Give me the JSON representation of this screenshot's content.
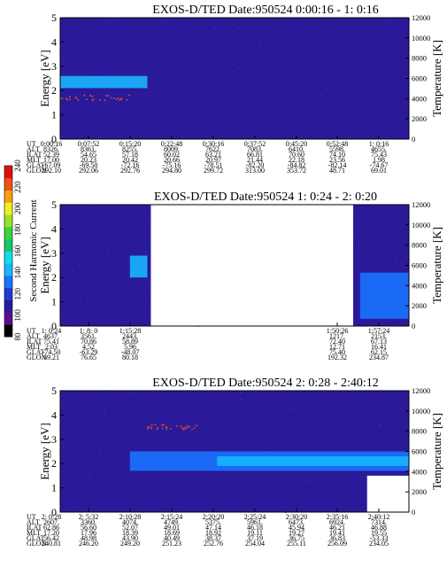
{
  "colorbar": {
    "label": "Second Harmonic Current",
    "ticks": [
      "80",
      "100",
      "120",
      "140",
      "160",
      "180",
      "200",
      "220",
      "240"
    ],
    "colors": [
      "#000000",
      "#5a0f8c",
      "#2a1a9a",
      "#1f3bd0",
      "#1a73ff",
      "#18b6ff",
      "#0fe0e8",
      "#13c96a",
      "#3cd43c",
      "#9be02a",
      "#f0f020",
      "#f5a014",
      "#f0501a",
      "#e01010"
    ]
  },
  "chart_data": [
    {
      "type": "heatmap",
      "title": "EXOS-D/TED   Date:950524   0:00:16 - 1: 0:16",
      "ylabel_left": "Energy [eV]",
      "ylabel_right": "Temperature [K]",
      "ylim_left": [
        0,
        5
      ],
      "ylim_right": [
        0,
        12000
      ],
      "yticks_left": [
        "0",
        "1",
        "2",
        "3",
        "4",
        "5"
      ],
      "yticks_right": [
        "0",
        "2000",
        "4000",
        "6000",
        "8000",
        "10000",
        "12000"
      ],
      "background_color": "#2a1a9a",
      "x_ticks": [
        "0:00:16",
        "0:07:52",
        "0:15:20",
        "0:22:48",
        "0:30:16",
        "0:37:52",
        "0:45:20",
        "0:52:48",
        "1: 0:16"
      ],
      "features": [
        {
          "desc": "band",
          "x_start": 0.0,
          "x_end": 0.25,
          "e_low": 2.1,
          "e_high": 2.6,
          "color": "#18b6ff"
        },
        {
          "desc": "scatter",
          "x_start": 0.0,
          "x_end": 0.2,
          "e": 1.7,
          "color": "#f05020"
        }
      ],
      "table_labels": [
        "UT",
        "ALT",
        "ILAT",
        "MLT",
        "GLAT",
        "GLON"
      ],
      "table_rows": [
        [
          "0:00:16",
          "0:07:52",
          "0:15:20",
          "0:22:48",
          "0:30:16",
          "0:37:52",
          "0:45:20",
          "0:52:48",
          "1: 0:16"
        ],
        [
          "8326.",
          "8361.",
          "8255.",
          "8009.",
          "7622.",
          "7083.",
          "6410.",
          "5598.",
          "4655."
        ],
        [
          "52.39",
          "54.65",
          "57.18",
          "60.02",
          "63.21",
          "66.81",
          "70.60",
          "74.10",
          "75.43"
        ],
        [
          "17.00",
          "20.23",
          "20.42",
          "20.66",
          "20.97",
          "21.44",
          "22.18",
          "23.56",
          "1.98"
        ],
        [
          "-67.09",
          "-69.50",
          "-72.16",
          "-75.16",
          "-78.51",
          "-82.20",
          "-84.82",
          "-82.14",
          "-74.67"
        ],
        [
          "292.10",
          "292.06",
          "292.76",
          "294.80",
          "299.72",
          "313.00",
          "353.72",
          "48.71",
          "69.01"
        ]
      ]
    },
    {
      "type": "heatmap",
      "title": "EXOS-D/TED   Date:950524   1: 0:24 - 2: 0:20",
      "ylabel_left": "Energy [eV]",
      "ylabel_right": "Temperature [K]",
      "ylim_left": [
        0,
        5
      ],
      "ylim_right": [
        0,
        12000
      ],
      "yticks_left": [
        "0",
        "1",
        "2",
        "3",
        "4",
        "5"
      ],
      "yticks_right": [
        "0",
        "2000",
        "4000",
        "6000",
        "8000",
        "10000",
        "12000"
      ],
      "background_color": "#2a1a9a",
      "x_ticks": [
        "1: 0:24",
        "1: 8: 0",
        "1:15:28",
        "",
        "",
        "",
        "",
        "1:50:26",
        "1:57:24"
      ],
      "gap": [
        0.26,
        0.84
      ],
      "features": [
        {
          "desc": "band",
          "x_start": 0.2,
          "x_end": 0.25,
          "e_low": 2.0,
          "e_high": 2.9,
          "color": "#18b6ff"
        },
        {
          "desc": "band",
          "x_start": 0.86,
          "x_end": 1.0,
          "e_low": 0.3,
          "e_high": 2.2,
          "color": "#1a73ff"
        }
      ],
      "table_labels": [
        "UT",
        "ALT",
        "ILAT",
        "MLT",
        "GLAT",
        "GLON"
      ],
      "table_rows": [
        [
          "1: 0:24",
          "1: 8: 0",
          "1:15:28",
          "",
          "",
          "",
          "",
          "1:50:26",
          "1:57:24"
        ],
        [
          "4637.",
          "3561.",
          "2443.",
          "",
          "",
          "",
          "",
          "1217.",
          "2153."
        ],
        [
          "75.41",
          "70.86",
          "58.89",
          "",
          "",
          "",
          "",
          "72.40",
          "67.13"
        ],
        [
          "2.03",
          "4.52",
          "5.96",
          "",
          "",
          "",
          "",
          "12.71",
          "16.41"
        ],
        [
          "-74.50",
          "-63.29",
          "-48.07",
          "",
          "",
          "",
          "",
          "75.40",
          "62.15"
        ],
        [
          "69.21",
          "76.65",
          "80.18",
          "",
          "",
          "",
          "",
          "192.32",
          "234.87"
        ]
      ]
    },
    {
      "type": "heatmap",
      "title": "EXOS-D/TED   Date:950524   2: 0:28 - 2:40:12",
      "ylabel_left": "Energy [eV]",
      "ylabel_right": "Temperature [K]",
      "ylim_left": [
        0,
        5
      ],
      "ylim_right": [
        0,
        12000
      ],
      "yticks_left": [
        "0",
        "1",
        "2",
        "3",
        "4",
        "5"
      ],
      "yticks_right": [
        "0",
        "2000",
        "4000",
        "6000",
        "8000",
        "10000",
        "12000"
      ],
      "background_color": "#2a1a9a",
      "x_ticks": [
        "2: 0:28",
        "2: 5:32",
        "2:10:28",
        "2:15:24",
        "2:20:20",
        "2:25:24",
        "2:30:20",
        "2:35:16",
        "2:40:12"
      ],
      "features": [
        {
          "desc": "band",
          "x_start": 0.2,
          "x_end": 1.0,
          "e_low": 1.7,
          "e_high": 2.5,
          "color": "#1a73ff"
        },
        {
          "desc": "band",
          "x_start": 0.45,
          "x_end": 1.0,
          "e_low": 1.9,
          "e_high": 2.3,
          "color": "#18b6ff"
        },
        {
          "desc": "scatter",
          "x_start": 0.25,
          "x_end": 0.4,
          "e": 3.5,
          "color": "#f05020"
        },
        {
          "desc": "gap",
          "x_start": 0.88,
          "x_end": 1.0,
          "e_low": 0.0,
          "e_high": 1.5,
          "color": "#ffffff"
        }
      ],
      "table_labels": [
        "UT",
        "ALT",
        "ILAT",
        "MLT",
        "GLAT",
        "GLON"
      ],
      "table_rows": [
        [
          "2: 0:28",
          "2: 5:32",
          "2:10:28",
          "2:15:24",
          "2:20:20",
          "2:25:24",
          "2:30:20",
          "2:35:16",
          "2:40:12"
        ],
        [
          "2607.",
          "3360.",
          "4074.",
          "4749.",
          "5375.",
          "5961.",
          "6473.",
          "6924.",
          "7314."
        ],
        [
          "62.86",
          "56.60",
          "52.07",
          "49.01",
          "47.14",
          "46.18",
          "45.94",
          "46.21",
          "46.88"
        ],
        [
          "17.20",
          "17.96",
          "18.39",
          "18.69",
          "18.92",
          "19.11",
          "19.27",
          "19.41",
          "19.55"
        ],
        [
          "56.42",
          "48.98",
          "43.90",
          "40.49",
          "38.37",
          "37.19",
          "36.75",
          "36.83",
          "-53.33"
        ],
        [
          "240.81",
          "246.20",
          "249.20",
          "251.23",
          "252.76",
          "254.04",
          "255.11",
          "256.09",
          "234.05"
        ]
      ]
    }
  ]
}
